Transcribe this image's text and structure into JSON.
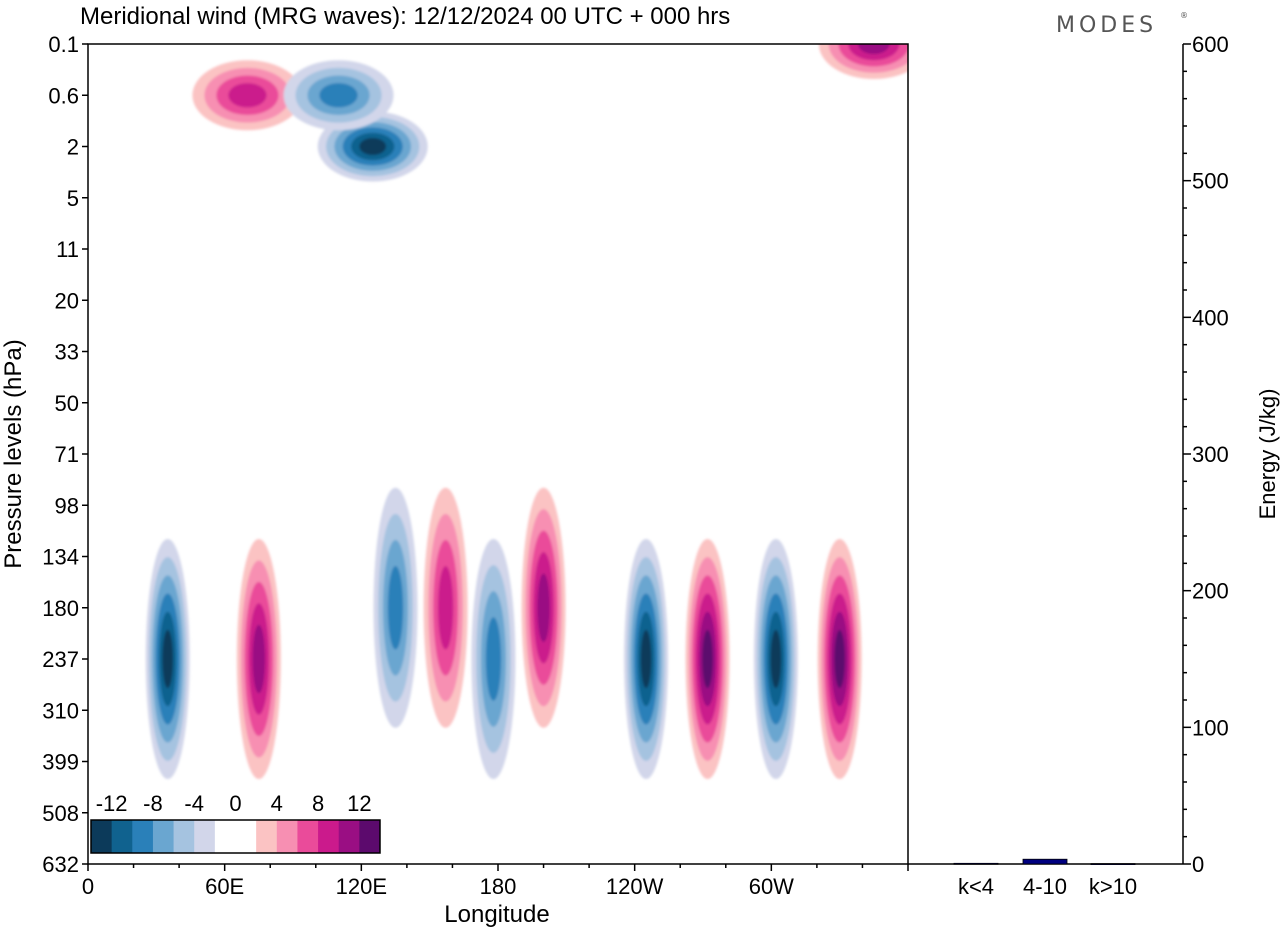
{
  "title": "Meridional wind (MRG waves):  12/12/2024  00 UTC  + 000 hrs",
  "logo": "MODES",
  "chart_data": [
    {
      "type": "heatmap",
      "xlabel": "Longitude",
      "ylabel": "Pressure levels (hPa)",
      "x_ticks": [
        "0",
        "60E",
        "120E",
        "180",
        "120W",
        "60W"
      ],
      "y_ticks": [
        "0.1",
        "0.6",
        "2",
        "5",
        "11",
        "20",
        "33",
        "50",
        "71",
        "98",
        "134",
        "180",
        "237",
        "310",
        "399",
        "508",
        "632"
      ],
      "colorbar": {
        "labels": [
          "-12",
          "-8",
          "-4",
          "0",
          "4",
          "8",
          "12"
        ],
        "colors": [
          "#0c3a5a",
          "#10628f",
          "#2a80b9",
          "#6aa6d0",
          "#a5c3e0",
          "#d2d6ea",
          "#ffffff",
          "#ffffff",
          "#fbc3c3",
          "#f78fb2",
          "#ea4b9a",
          "#cb1a8c",
          "#9a0e83",
          "#5c0a6d"
        ]
      },
      "cells": [
        {
          "lon": 70,
          "level": "0.6",
          "value": 9
        },
        {
          "lon": 125,
          "level": "2",
          "value": -14
        },
        {
          "lon": 110,
          "level": "0.6",
          "value": -8
        },
        {
          "lon": 35,
          "level": "237",
          "value": -13
        },
        {
          "lon": 75,
          "level": "237",
          "value": 10
        },
        {
          "lon": 135,
          "level": "180",
          "value": -8
        },
        {
          "lon": 157,
          "level": "180",
          "value": 8
        },
        {
          "lon": 178,
          "level": "237",
          "value": -9
        },
        {
          "lon": 200,
          "level": "180",
          "value": 11
        },
        {
          "lon": 245,
          "level": "237",
          "value": -13
        },
        {
          "lon": 272,
          "level": "237",
          "value": 12
        },
        {
          "lon": 302,
          "level": "237",
          "value": -14
        },
        {
          "lon": 330,
          "level": "237",
          "value": 12
        },
        {
          "lon": 345,
          "level": "0.1",
          "value": 11
        }
      ]
    },
    {
      "type": "bar",
      "ylabel": "Energy (J/kg)",
      "categories": [
        "k<4",
        "4-10",
        "k>10"
      ],
      "values": [
        0.5,
        3.5,
        0.3
      ],
      "ylim": [
        0,
        600
      ],
      "y_ticks": [
        "0",
        "100",
        "200",
        "300",
        "400",
        "500",
        "600"
      ],
      "colors": [
        "#000080",
        "#000080",
        "#000080"
      ]
    }
  ]
}
